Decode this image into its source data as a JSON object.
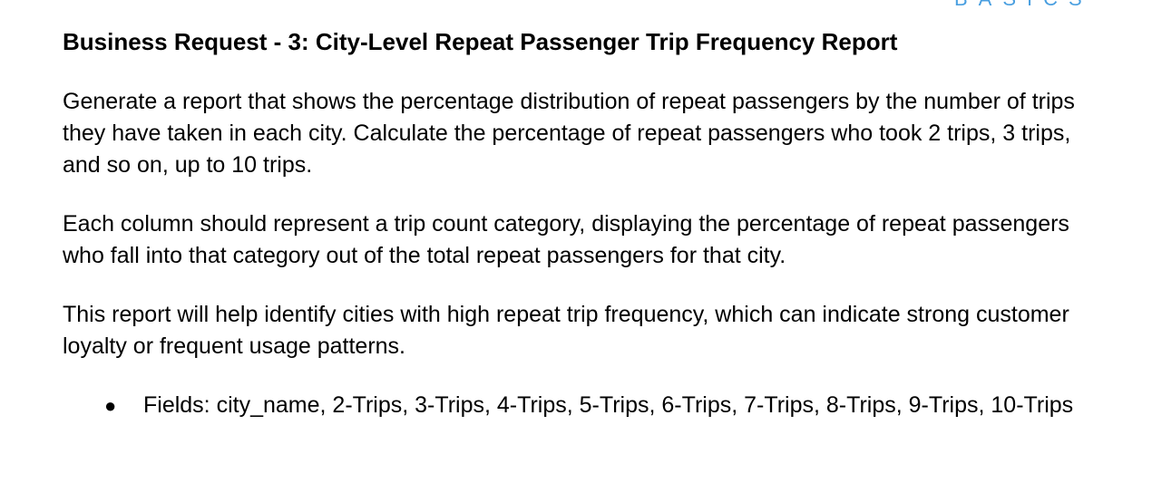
{
  "corner_mark": "BASICS",
  "heading": {
    "prefix": "Business Request - 3:",
    "title": " City-Level Repeat Passenger Trip Frequency Report"
  },
  "paragraphs": [
    "Generate a report that shows the percentage distribution of repeat passengers by the number of trips they have taken in each city. Calculate the percentage of repeat passengers who took 2 trips, 3 trips, and so on, up to 10 trips.",
    "Each column should represent a trip count category, displaying the percentage of repeat passengers who fall into that category out of the total repeat passengers for that city.",
    "This report will help identify cities with high repeat trip frequency, which can indicate strong customer loyalty or frequent usage patterns."
  ],
  "bullets": [
    {
      "marker": "●",
      "text": "Fields: city_name, 2-Trips, 3-Trips, 4-Trips, 5-Trips, 6-Trips, 7-Trips, 8-Trips, 9-Trips, 10-Trips"
    }
  ],
  "colors": {
    "text": "#000000",
    "corner_mark": "#4a9fe0",
    "background": "#ffffff"
  }
}
